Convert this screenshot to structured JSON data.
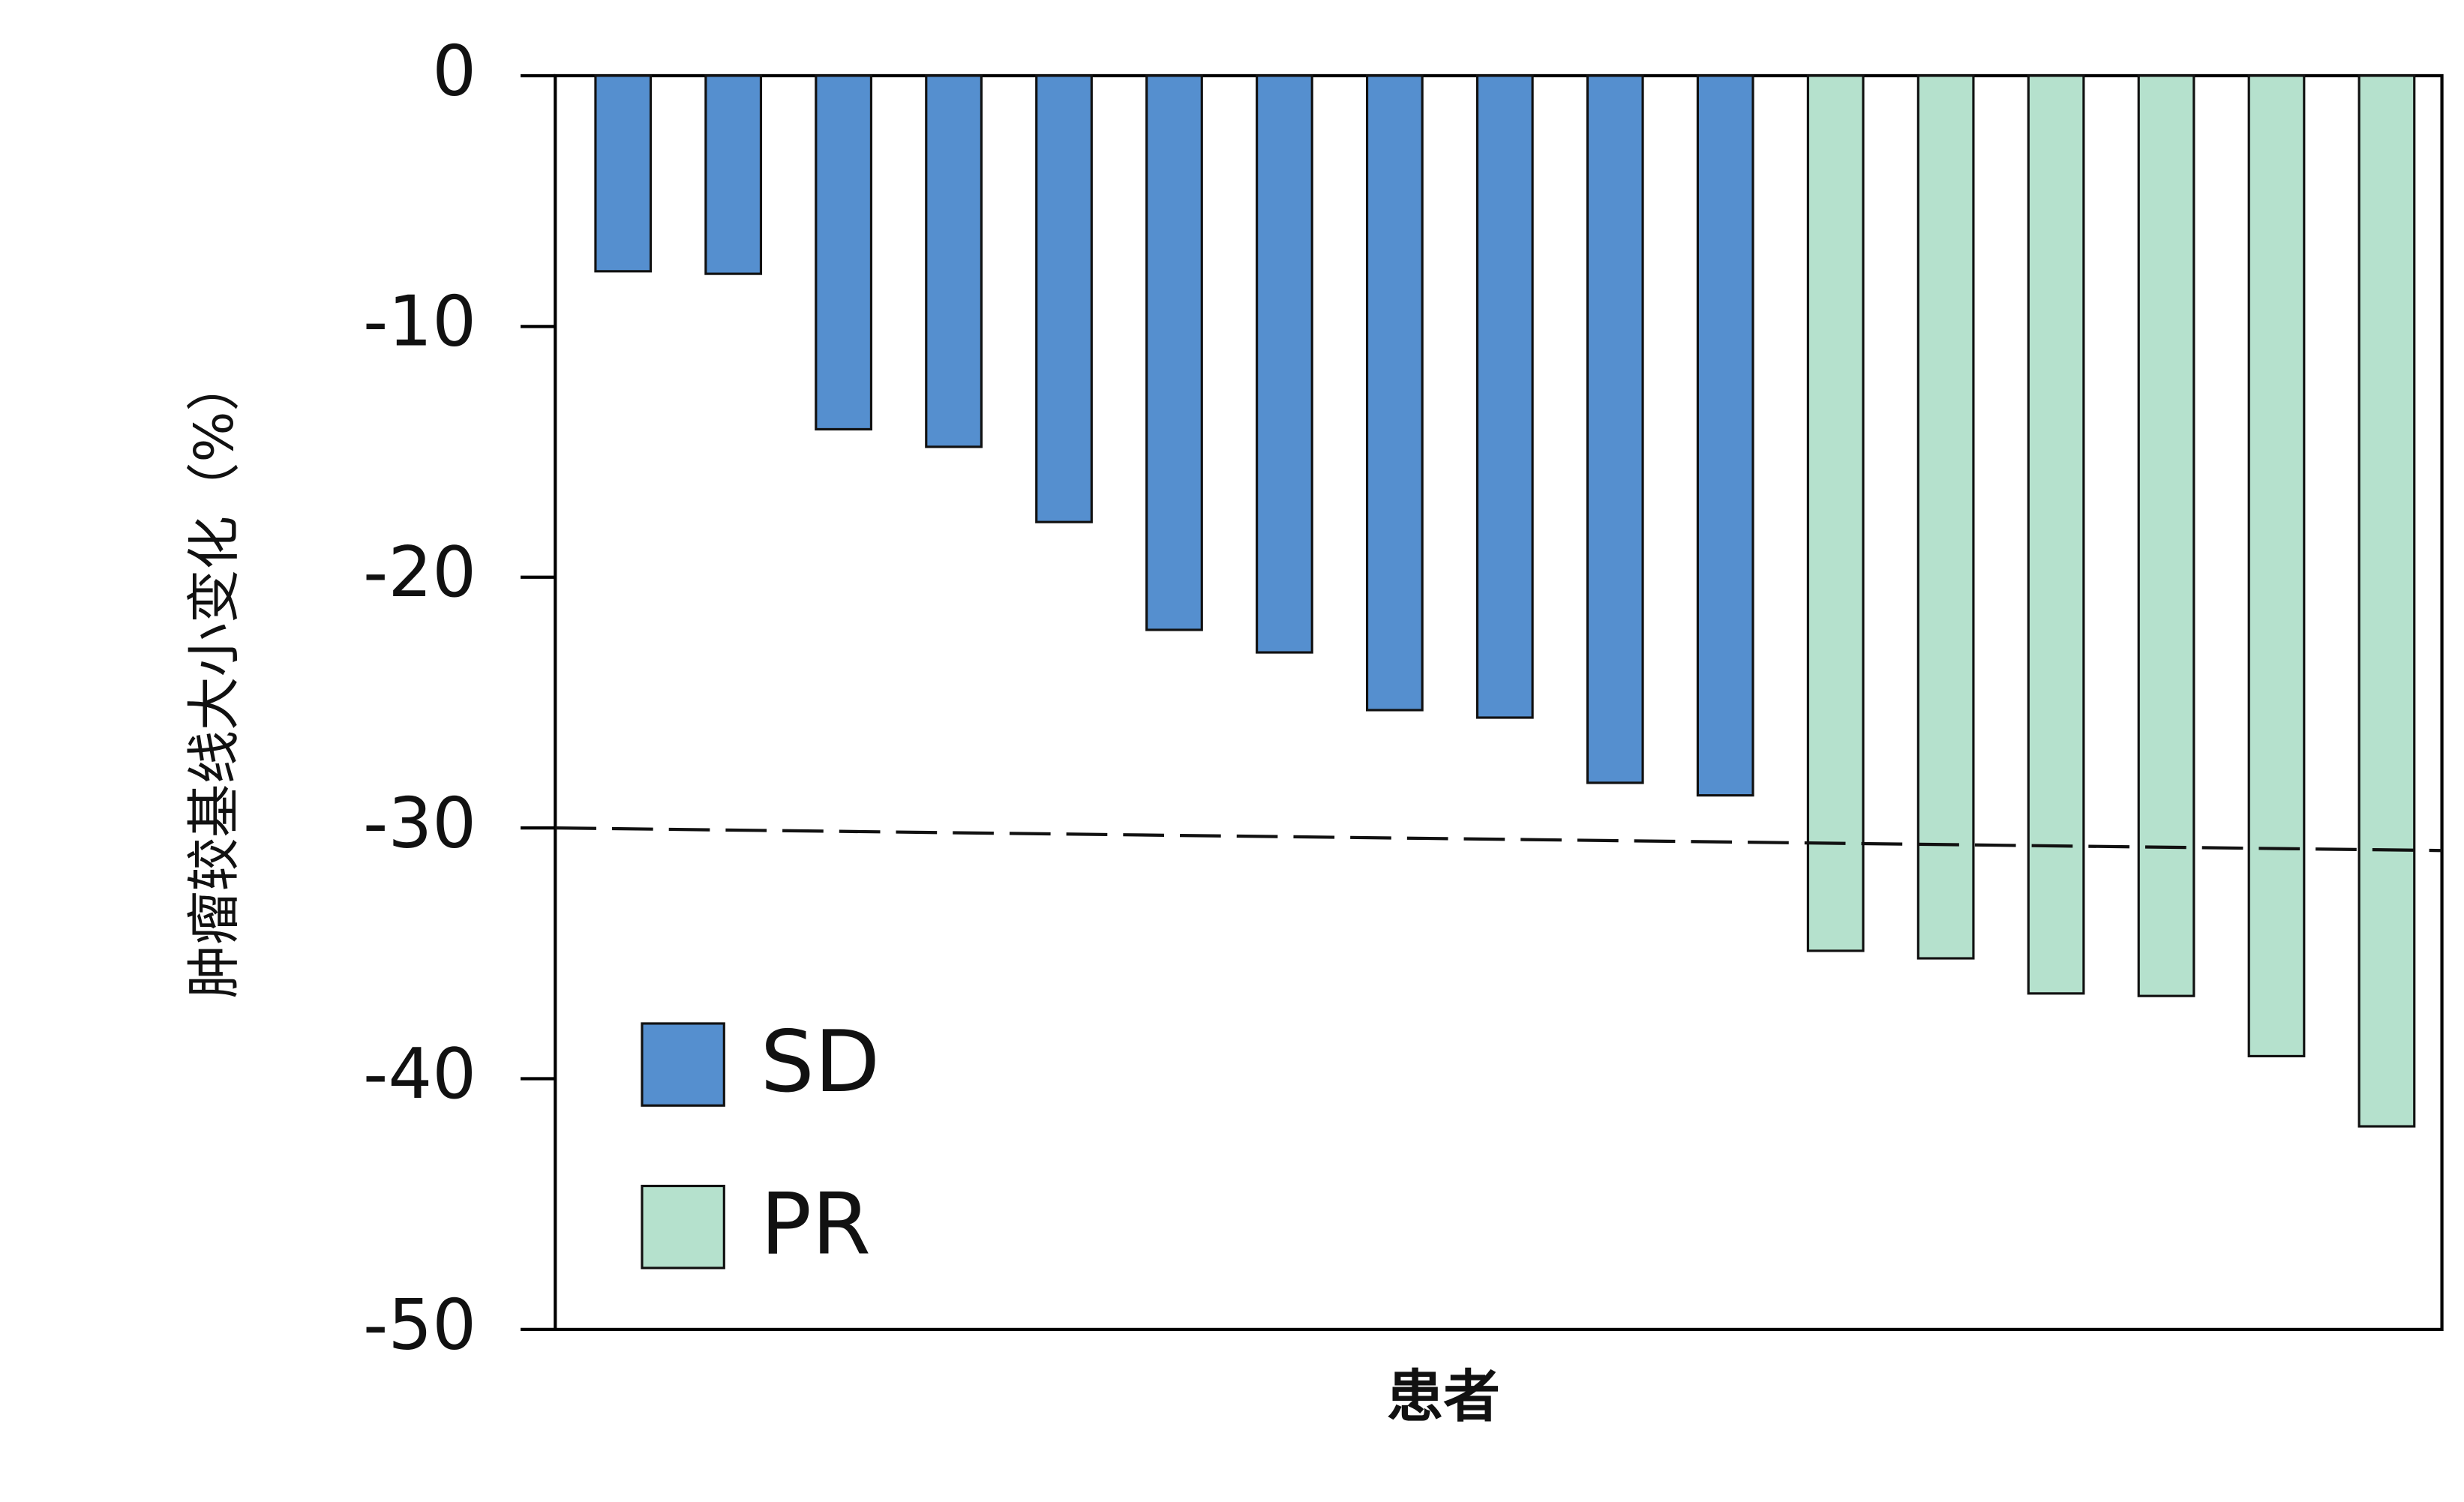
{
  "chart_data": {
    "type": "bar",
    "y_label": "肿瘤较基线大小变化（%）",
    "x_label": "患者",
    "categories": [
      null,
      null,
      null,
      null,
      null,
      null,
      null,
      null,
      null,
      null,
      null,
      null,
      null,
      null,
      null,
      null,
      null
    ],
    "series": [
      {
        "name": "SD",
        "color": "#558fcf",
        "values": [
          -7.8,
          -7.9,
          -14.1,
          -14.8,
          -17.8,
          -22.1,
          -23.0,
          -25.3,
          -25.6,
          -28.2,
          -28.7,
          null,
          null,
          null,
          null,
          null,
          null
        ]
      },
      {
        "name": "PR",
        "color": "#b5e1cd",
        "values": [
          null,
          null,
          null,
          null,
          null,
          null,
          null,
          null,
          null,
          null,
          null,
          -34.9,
          -35.2,
          -36.6,
          -36.7,
          -39.1,
          -41.9
        ]
      }
    ],
    "ylim": [
      -50,
      0
    ],
    "yticks": [
      0,
      -10,
      -20,
      -30,
      -40,
      -50
    ],
    "reference_line": [
      -30,
      -30.9
    ],
    "legend": "lower-left"
  }
}
